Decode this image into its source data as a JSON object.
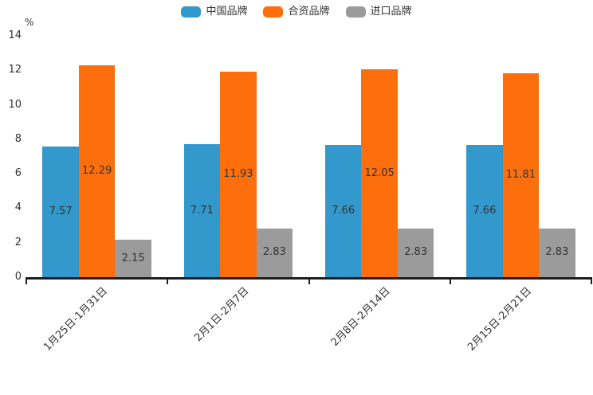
{
  "chart_data": {
    "type": "bar",
    "title": "",
    "ylabel": "%",
    "xlabel": "",
    "categories": [
      "1月25日-1月31日",
      "2月1日-2月7日",
      "2月8日-2月14日",
      "2月15日-2月21日"
    ],
    "series": [
      {
        "name": "中国品牌",
        "color": "#3398cb",
        "values": [
          7.57,
          7.71,
          7.66,
          7.66
        ]
      },
      {
        "name": "合资品牌",
        "color": "#fd6e0d",
        "values": [
          12.29,
          11.93,
          12.05,
          11.81
        ]
      },
      {
        "name": "进口品牌",
        "color": "#9b9b9b",
        "values": [
          2.15,
          2.83,
          2.83,
          2.83
        ]
      }
    ],
    "ylim": [
      0,
      14
    ],
    "yticks": [
      0,
      2,
      4,
      6,
      8,
      10,
      12,
      14
    ],
    "grid": false,
    "legend_position": "top",
    "value_labels": true,
    "value_label_decimals": 2,
    "axis_color": "#1f1f1f",
    "text_color": "#333333"
  }
}
